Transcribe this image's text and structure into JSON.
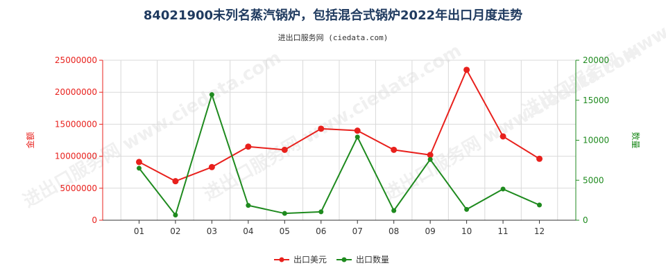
{
  "title": "84021900未列名蒸汽锅炉，包括混合式锅炉2022年出口月度走势",
  "subtitle": "进出口服务网 (ciedata.com)",
  "watermark": "进出口服务网 www.ciedata.com",
  "chart_data": {
    "type": "line",
    "categories": [
      "01",
      "02",
      "03",
      "04",
      "05",
      "06",
      "07",
      "08",
      "09",
      "10",
      "11",
      "12"
    ],
    "series": [
      {
        "name": "出口美元",
        "axis": "left",
        "color": "#e8201c",
        "values": [
          9100000,
          6100000,
          8300000,
          11500000,
          11000000,
          14300000,
          14000000,
          11000000,
          10200000,
          23500000,
          13100000,
          9600000
        ]
      },
      {
        "name": "出口数量",
        "axis": "right",
        "color": "#1e8a1e",
        "values": [
          6500,
          650,
          15700,
          1850,
          850,
          1050,
          10400,
          1200,
          7600,
          1350,
          3900,
          1900
        ]
      }
    ],
    "y_left": {
      "label": "金额",
      "min": 0,
      "max": 25000000,
      "ticks": [
        0,
        5000000,
        10000000,
        15000000,
        20000000,
        25000000
      ],
      "color": "#e8201c"
    },
    "y_right": {
      "label": "数量",
      "min": 0,
      "max": 20000,
      "ticks": [
        0,
        5000,
        10000,
        15000,
        20000
      ],
      "color": "#1e8a1e"
    },
    "grid": true,
    "legend_position": "bottom"
  }
}
